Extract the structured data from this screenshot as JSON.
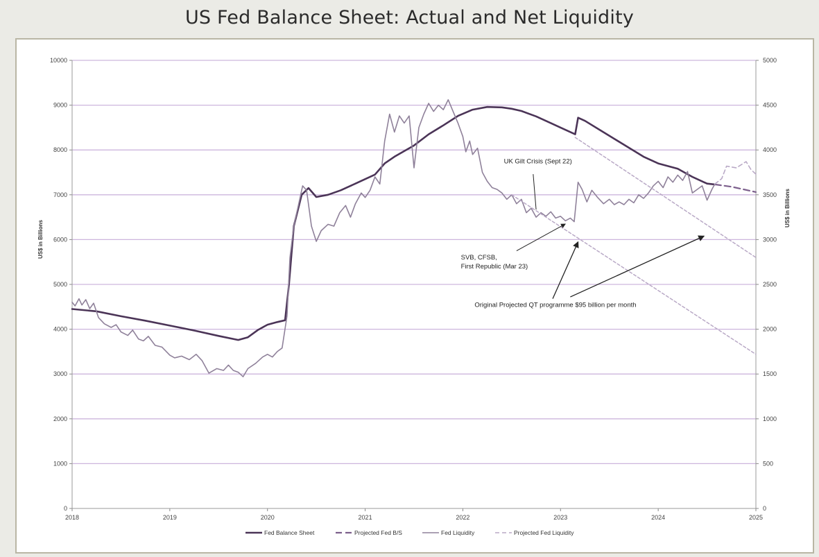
{
  "chart_data": {
    "type": "line",
    "title": "US Fed Balance Sheet: Actual and Net Liquidity",
    "ylabel": "US$ in Billions",
    "ylabel_right": "US$ in Billions",
    "xlim": [
      2018,
      2025
    ],
    "ylim": [
      0,
      10000
    ],
    "ylim_right": [
      0,
      5000
    ],
    "x_ticks": [
      "2018",
      "2019",
      "2020",
      "2021",
      "2022",
      "2023",
      "2024",
      "2025"
    ],
    "y_ticks": [
      "0",
      "1000",
      "2000",
      "3000",
      "4000",
      "5000",
      "6000",
      "7000",
      "8000",
      "9000",
      "10000"
    ],
    "y_ticks_right": [
      "0",
      "500",
      "1000",
      "1500",
      "2000",
      "2500",
      "3000",
      "3500",
      "4000",
      "4500",
      "5000"
    ],
    "grid": true,
    "legend_position": "bottom",
    "colors": {
      "balance": "#4b3457",
      "projected_balance": "#7c5f8c",
      "liquidity": "#8f819a",
      "projected_liquidity": "#b9a9c6",
      "grid": "#cdb6dd"
    },
    "series": [
      {
        "name": "Fed Balance Sheet",
        "axis": "left",
        "points": [
          [
            2018.0,
            4450
          ],
          [
            2018.25,
            4400
          ],
          [
            2018.5,
            4290
          ],
          [
            2018.75,
            4190
          ],
          [
            2019.0,
            4080
          ],
          [
            2019.25,
            3970
          ],
          [
            2019.5,
            3850
          ],
          [
            2019.7,
            3760
          ],
          [
            2019.8,
            3820
          ],
          [
            2019.9,
            3980
          ],
          [
            2020.0,
            4100
          ],
          [
            2020.1,
            4160
          ],
          [
            2020.18,
            4200
          ],
          [
            2020.22,
            5000
          ],
          [
            2020.27,
            6300
          ],
          [
            2020.35,
            7000
          ],
          [
            2020.42,
            7150
          ],
          [
            2020.5,
            6950
          ],
          [
            2020.62,
            7000
          ],
          [
            2020.75,
            7100
          ],
          [
            2020.9,
            7250
          ],
          [
            2021.0,
            7350
          ],
          [
            2021.1,
            7450
          ],
          [
            2021.2,
            7700
          ],
          [
            2021.3,
            7850
          ],
          [
            2021.5,
            8100
          ],
          [
            2021.65,
            8350
          ],
          [
            2021.8,
            8550
          ],
          [
            2021.95,
            8760
          ],
          [
            2022.1,
            8900
          ],
          [
            2022.25,
            8960
          ],
          [
            2022.4,
            8950
          ],
          [
            2022.5,
            8920
          ],
          [
            2022.6,
            8870
          ],
          [
            2022.75,
            8750
          ],
          [
            2022.9,
            8600
          ],
          [
            2023.0,
            8500
          ],
          [
            2023.15,
            8350
          ],
          [
            2023.18,
            8720
          ],
          [
            2023.25,
            8650
          ],
          [
            2023.4,
            8450
          ],
          [
            2023.55,
            8250
          ],
          [
            2023.7,
            8050
          ],
          [
            2023.85,
            7850
          ],
          [
            2024.0,
            7700
          ],
          [
            2024.2,
            7580
          ],
          [
            2024.35,
            7400
          ],
          [
            2024.5,
            7250
          ],
          [
            2024.58,
            7230
          ]
        ]
      },
      {
        "name": "Projected Fed B/S",
        "axis": "left",
        "points": [
          [
            2024.58,
            7230
          ],
          [
            2024.75,
            7180
          ],
          [
            2025.0,
            7060
          ]
        ]
      },
      {
        "name": "Fed Liquidity",
        "axis": "right",
        "points": [
          [
            2018.0,
            2300
          ],
          [
            2018.03,
            2260
          ],
          [
            2018.07,
            2340
          ],
          [
            2018.1,
            2270
          ],
          [
            2018.14,
            2330
          ],
          [
            2018.18,
            2230
          ],
          [
            2018.22,
            2290
          ],
          [
            2018.27,
            2130
          ],
          [
            2018.33,
            2060
          ],
          [
            2018.4,
            2020
          ],
          [
            2018.45,
            2050
          ],
          [
            2018.5,
            1970
          ],
          [
            2018.57,
            1930
          ],
          [
            2018.62,
            1990
          ],
          [
            2018.68,
            1890
          ],
          [
            2018.73,
            1870
          ],
          [
            2018.78,
            1920
          ],
          [
            2018.85,
            1820
          ],
          [
            2018.92,
            1800
          ],
          [
            2019.0,
            1710
          ],
          [
            2019.05,
            1680
          ],
          [
            2019.12,
            1700
          ],
          [
            2019.2,
            1660
          ],
          [
            2019.27,
            1720
          ],
          [
            2019.33,
            1650
          ],
          [
            2019.4,
            1510
          ],
          [
            2019.48,
            1560
          ],
          [
            2019.55,
            1540
          ],
          [
            2019.6,
            1600
          ],
          [
            2019.65,
            1540
          ],
          [
            2019.7,
            1520
          ],
          [
            2019.75,
            1470
          ],
          [
            2019.8,
            1560
          ],
          [
            2019.88,
            1620
          ],
          [
            2019.95,
            1690
          ],
          [
            2020.0,
            1720
          ],
          [
            2020.05,
            1690
          ],
          [
            2020.1,
            1750
          ],
          [
            2020.15,
            1790
          ],
          [
            2020.2,
            2150
          ],
          [
            2020.23,
            2800
          ],
          [
            2020.27,
            3150
          ],
          [
            2020.32,
            3400
          ],
          [
            2020.36,
            3600
          ],
          [
            2020.4,
            3550
          ],
          [
            2020.45,
            3150
          ],
          [
            2020.5,
            2980
          ],
          [
            2020.55,
            3100
          ],
          [
            2020.62,
            3170
          ],
          [
            2020.68,
            3150
          ],
          [
            2020.74,
            3300
          ],
          [
            2020.8,
            3380
          ],
          [
            2020.85,
            3250
          ],
          [
            2020.9,
            3400
          ],
          [
            2020.96,
            3520
          ],
          [
            2021.0,
            3470
          ],
          [
            2021.05,
            3550
          ],
          [
            2021.1,
            3700
          ],
          [
            2021.15,
            3620
          ],
          [
            2021.2,
            4100
          ],
          [
            2021.25,
            4400
          ],
          [
            2021.3,
            4200
          ],
          [
            2021.35,
            4380
          ],
          [
            2021.4,
            4300
          ],
          [
            2021.45,
            4380
          ],
          [
            2021.5,
            3800
          ],
          [
            2021.55,
            4250
          ],
          [
            2021.6,
            4400
          ],
          [
            2021.65,
            4520
          ],
          [
            2021.7,
            4430
          ],
          [
            2021.75,
            4500
          ],
          [
            2021.8,
            4450
          ],
          [
            2021.85,
            4560
          ],
          [
            2021.9,
            4430
          ],
          [
            2021.95,
            4300
          ],
          [
            2022.0,
            4150
          ],
          [
            2022.03,
            3980
          ],
          [
            2022.07,
            4100
          ],
          [
            2022.1,
            3950
          ],
          [
            2022.15,
            4020
          ],
          [
            2022.2,
            3750
          ],
          [
            2022.25,
            3650
          ],
          [
            2022.3,
            3580
          ],
          [
            2022.35,
            3560
          ],
          [
            2022.4,
            3520
          ],
          [
            2022.45,
            3450
          ],
          [
            2022.5,
            3500
          ],
          [
            2022.55,
            3400
          ],
          [
            2022.6,
            3450
          ],
          [
            2022.65,
            3300
          ],
          [
            2022.7,
            3350
          ],
          [
            2022.75,
            3250
          ],
          [
            2022.8,
            3300
          ],
          [
            2022.85,
            3260
          ],
          [
            2022.9,
            3310
          ],
          [
            2022.95,
            3240
          ],
          [
            2023.0,
            3260
          ],
          [
            2023.05,
            3210
          ],
          [
            2023.1,
            3240
          ],
          [
            2023.14,
            3200
          ],
          [
            2023.18,
            3640
          ],
          [
            2023.22,
            3560
          ],
          [
            2023.27,
            3420
          ],
          [
            2023.32,
            3550
          ],
          [
            2023.38,
            3470
          ],
          [
            2023.44,
            3400
          ],
          [
            2023.5,
            3450
          ],
          [
            2023.55,
            3390
          ],
          [
            2023.6,
            3420
          ],
          [
            2023.65,
            3390
          ],
          [
            2023.7,
            3450
          ],
          [
            2023.75,
            3410
          ],
          [
            2023.8,
            3500
          ],
          [
            2023.85,
            3460
          ],
          [
            2023.9,
            3520
          ],
          [
            2023.95,
            3600
          ],
          [
            2024.0,
            3650
          ],
          [
            2024.05,
            3580
          ],
          [
            2024.1,
            3700
          ],
          [
            2024.15,
            3640
          ],
          [
            2024.2,
            3720
          ],
          [
            2024.25,
            3660
          ],
          [
            2024.3,
            3760
          ],
          [
            2024.35,
            3520
          ],
          [
            2024.4,
            3560
          ],
          [
            2024.45,
            3600
          ],
          [
            2024.5,
            3440
          ],
          [
            2024.55,
            3560
          ],
          [
            2024.58,
            3620
          ]
        ]
      },
      {
        "name": "Projected Fed Liquidity",
        "axis": "right",
        "points": [
          [
            2024.58,
            3620
          ],
          [
            2024.65,
            3680
          ],
          [
            2024.7,
            3820
          ],
          [
            2024.8,
            3800
          ],
          [
            2024.9,
            3870
          ],
          [
            2024.95,
            3780
          ],
          [
            2025.0,
            3730
          ]
        ]
      },
      {
        "name": "",
        "axis": "left",
        "points": [
          [
            2023.15,
            8280
          ],
          [
            2025.0,
            5600
          ]
        ]
      },
      {
        "name": "",
        "axis": "right",
        "points": [
          [
            2022.5,
            3500
          ],
          [
            2025.0,
            1720
          ]
        ]
      }
    ],
    "annotations": [
      {
        "text": "UK Gilt Crisis (Sept 22)",
        "lines": [
          "UK Gilt Crisis (Sept 22)"
        ]
      },
      {
        "text": "SVB, CFSB, First Republic (Mar 23)",
        "lines": [
          "SVB, CFSB,",
          "First Republic (Mar 23)"
        ]
      },
      {
        "text": "Original Projected QT programme $95 billion per month",
        "lines": [
          "Original Projected QT programme $95 billion per month"
        ]
      }
    ]
  }
}
